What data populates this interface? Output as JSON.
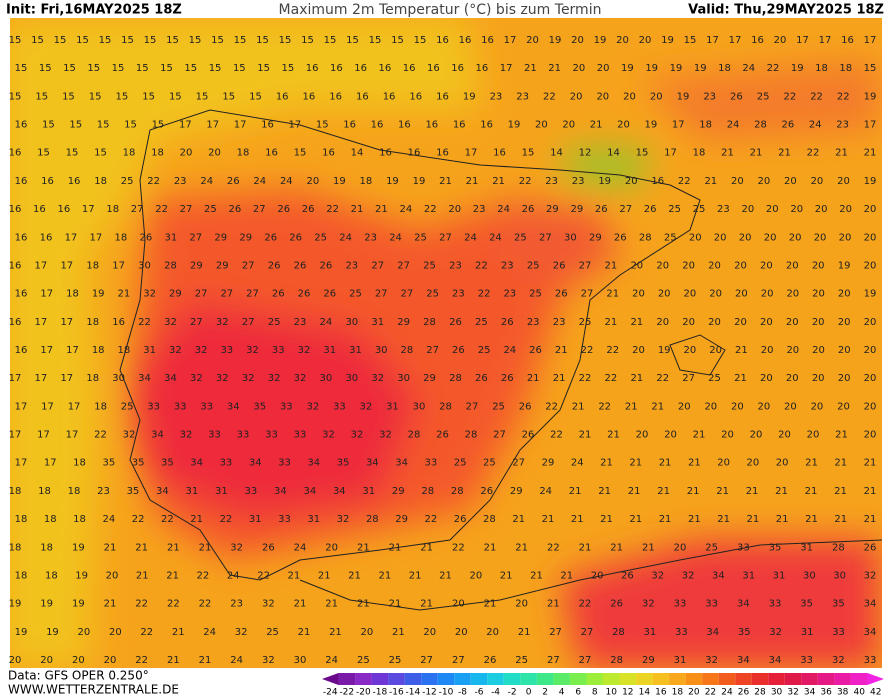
{
  "header": {
    "init": "Init: Fri,16MAY2025 18Z",
    "title": "Maximum 2m Temperatur (°C) bis zum Termin",
    "valid": "Valid: Thu,29MAY2025 18Z"
  },
  "footer": {
    "data": "Data: GFS OPER 0.250°",
    "site": "WWW.WETTERZENTRALE.DE"
  },
  "grid": {
    "rows": [
      [
        15,
        15,
        15,
        15,
        15,
        15,
        15,
        15,
        15,
        15,
        15,
        15,
        15,
        15,
        15,
        15,
        15,
        15,
        15,
        16,
        16,
        16,
        17,
        20,
        19,
        20,
        19,
        20,
        20,
        19,
        15,
        17,
        17,
        16,
        20,
        17,
        17,
        16,
        17
      ],
      [
        15,
        15,
        15,
        15,
        15,
        15,
        15,
        15,
        15,
        15,
        15,
        15,
        16,
        16,
        16,
        16,
        16,
        16,
        16,
        16,
        17,
        21,
        21,
        20,
        20,
        19,
        19,
        19,
        19,
        18,
        24,
        22,
        19,
        18,
        18,
        15
      ],
      [
        15,
        15,
        15,
        15,
        15,
        15,
        15,
        15,
        15,
        15,
        16,
        16,
        16,
        16,
        16,
        16,
        16,
        19,
        23,
        23,
        22,
        20,
        20,
        20,
        20,
        19,
        23,
        26,
        25,
        22,
        22,
        22,
        19
      ],
      [
        16,
        15,
        15,
        15,
        15,
        15,
        17,
        17,
        17,
        16,
        17,
        15,
        16,
        16,
        16,
        16,
        16,
        16,
        19,
        20,
        20,
        21,
        20,
        19,
        17,
        18,
        24,
        28,
        26,
        24,
        23,
        17
      ],
      [
        16,
        15,
        15,
        15,
        18,
        18,
        20,
        20,
        18,
        16,
        15,
        16,
        14,
        16,
        16,
        16,
        17,
        16,
        15,
        14,
        12,
        14,
        15,
        17,
        18,
        21,
        21,
        21,
        22,
        21,
        21
      ],
      [
        16,
        16,
        16,
        18,
        25,
        22,
        23,
        24,
        26,
        24,
        24,
        20,
        19,
        18,
        19,
        19,
        21,
        21,
        21,
        22,
        23,
        23,
        19,
        20,
        16,
        22,
        21,
        20,
        20,
        20,
        20,
        20,
        19
      ],
      [
        16,
        16,
        16,
        17,
        18,
        27,
        22,
        27,
        25,
        26,
        27,
        26,
        26,
        22,
        21,
        21,
        24,
        22,
        20,
        23,
        24,
        26,
        29,
        29,
        26,
        27,
        26,
        25,
        25,
        23,
        20,
        20,
        20,
        20,
        20,
        20
      ],
      [
        16,
        16,
        17,
        17,
        18,
        26,
        31,
        27,
        29,
        29,
        26,
        26,
        25,
        24,
        23,
        24,
        25,
        27,
        24,
        24,
        25,
        27,
        30,
        29,
        26,
        28,
        25,
        20,
        20,
        20,
        20,
        20,
        20,
        20,
        20
      ],
      [
        16,
        17,
        17,
        18,
        17,
        30,
        28,
        29,
        29,
        27,
        26,
        26,
        26,
        23,
        27,
        27,
        25,
        23,
        22,
        23,
        25,
        26,
        27,
        21,
        20,
        20,
        20,
        20,
        20,
        20,
        20,
        20,
        19,
        20
      ],
      [
        16,
        17,
        18,
        19,
        21,
        32,
        29,
        27,
        27,
        27,
        26,
        26,
        26,
        25,
        27,
        27,
        25,
        23,
        22,
        23,
        25,
        26,
        27,
        21,
        20,
        20,
        20,
        20,
        20,
        20,
        20,
        20,
        20,
        19
      ],
      [
        16,
        17,
        17,
        18,
        16,
        22,
        32,
        27,
        32,
        27,
        25,
        23,
        24,
        30,
        31,
        29,
        28,
        26,
        25,
        26,
        23,
        23,
        25,
        21,
        21,
        20,
        20,
        20,
        20,
        20,
        20,
        20,
        20,
        20
      ],
      [
        16,
        17,
        17,
        18,
        18,
        31,
        32,
        32,
        33,
        32,
        33,
        32,
        31,
        31,
        30,
        28,
        27,
        26,
        25,
        24,
        26,
        21,
        22,
        22,
        20,
        19,
        20,
        20,
        21,
        20,
        20,
        20,
        20,
        20
      ],
      [
        17,
        17,
        17,
        18,
        30,
        34,
        34,
        32,
        32,
        32,
        32,
        32,
        30,
        30,
        32,
        30,
        29,
        28,
        26,
        26,
        21,
        21,
        22,
        22,
        21,
        22,
        27,
        25,
        21,
        20,
        20,
        20,
        20,
        20
      ],
      [
        17,
        17,
        17,
        18,
        25,
        33,
        33,
        33,
        34,
        35,
        33,
        32,
        33,
        32,
        31,
        30,
        28,
        27,
        25,
        26,
        22,
        21,
        22,
        21,
        21,
        20,
        20,
        20,
        20,
        20,
        20,
        20,
        20
      ],
      [
        17,
        17,
        17,
        22,
        32,
        34,
        32,
        33,
        33,
        33,
        33,
        32,
        32,
        32,
        28,
        26,
        28,
        27,
        26,
        22,
        21,
        21,
        20,
        20,
        21,
        20,
        20,
        20,
        20,
        21,
        20
      ],
      [
        17,
        17,
        18,
        35,
        35,
        35,
        34,
        33,
        34,
        33,
        34,
        35,
        34,
        34,
        33,
        25,
        25,
        27,
        29,
        24,
        21,
        21,
        21,
        21,
        20,
        20,
        20,
        21,
        21,
        21
      ],
      [
        18,
        18,
        18,
        23,
        35,
        34,
        31,
        31,
        33,
        34,
        34,
        34,
        31,
        29,
        28,
        28,
        26,
        29,
        24,
        21,
        21,
        21,
        21,
        21,
        21,
        21,
        21,
        21,
        21,
        21
      ],
      [
        18,
        18,
        18,
        24,
        22,
        22,
        21,
        22,
        31,
        33,
        31,
        32,
        28,
        29,
        22,
        26,
        28,
        21,
        21,
        21,
        21,
        21,
        21,
        21,
        21,
        21,
        21,
        21,
        21,
        21
      ],
      [
        18,
        18,
        19,
        21,
        21,
        21,
        21,
        32,
        26,
        24,
        20,
        21,
        21,
        21,
        22,
        21,
        21,
        22,
        21,
        21,
        21,
        20,
        25,
        33,
        35,
        31,
        28,
        26
      ],
      [
        18,
        18,
        19,
        20,
        21,
        21,
        22,
        24,
        22,
        21,
        21,
        21,
        21,
        21,
        21,
        20,
        21,
        21,
        21,
        20,
        26,
        32,
        32,
        34,
        31,
        31,
        30,
        30,
        32
      ],
      [
        19,
        19,
        19,
        21,
        22,
        22,
        22,
        23,
        32,
        21,
        21,
        21,
        21,
        21,
        20,
        21,
        20,
        21,
        22,
        26,
        32,
        33,
        33,
        34,
        33,
        35,
        35,
        34
      ],
      [
        19,
        19,
        20,
        20,
        22,
        21,
        24,
        32,
        25,
        21,
        21,
        20,
        21,
        20,
        20,
        20,
        21,
        27,
        27,
        28,
        31,
        33,
        34,
        35,
        32,
        31,
        33,
        34
      ],
      [
        20,
        20,
        20,
        20,
        22,
        21,
        21,
        24,
        32,
        30,
        24,
        25,
        25,
        27,
        27,
        26,
        25,
        27,
        27,
        28,
        29,
        31,
        32,
        34,
        34,
        33,
        32,
        33
      ]
    ]
  },
  "colorbar": {
    "ticks": [
      -24,
      -22,
      -20,
      -18,
      -16,
      -14,
      -12,
      -10,
      -8,
      -6,
      -4,
      -2,
      0,
      2,
      4,
      6,
      8,
      10,
      12,
      14,
      16,
      18,
      20,
      22,
      24,
      26,
      28,
      30,
      32,
      34,
      36,
      38,
      40,
      42
    ],
    "colors": [
      "#6a0a8a",
      "#7a1aa8",
      "#8a2ac6",
      "#6e36d6",
      "#5a4ae0",
      "#3e5ee8",
      "#2a72f0",
      "#1e88f4",
      "#1aa0f2",
      "#18b8ee",
      "#1ccce0",
      "#22dcc8",
      "#2ee4a8",
      "#3ee888",
      "#5aec68",
      "#7aee4c",
      "#9cee3a",
      "#bcea2e",
      "#d8e228",
      "#ecd424",
      "#f6c020",
      "#f8a81c",
      "#f89018",
      "#f67618",
      "#f25c1c",
      "#ee4424",
      "#ea302c",
      "#e62036",
      "#e01a48",
      "#e21a66",
      "#e61a86",
      "#ea1ca6",
      "#ee20c6",
      "#f224e4"
    ]
  }
}
